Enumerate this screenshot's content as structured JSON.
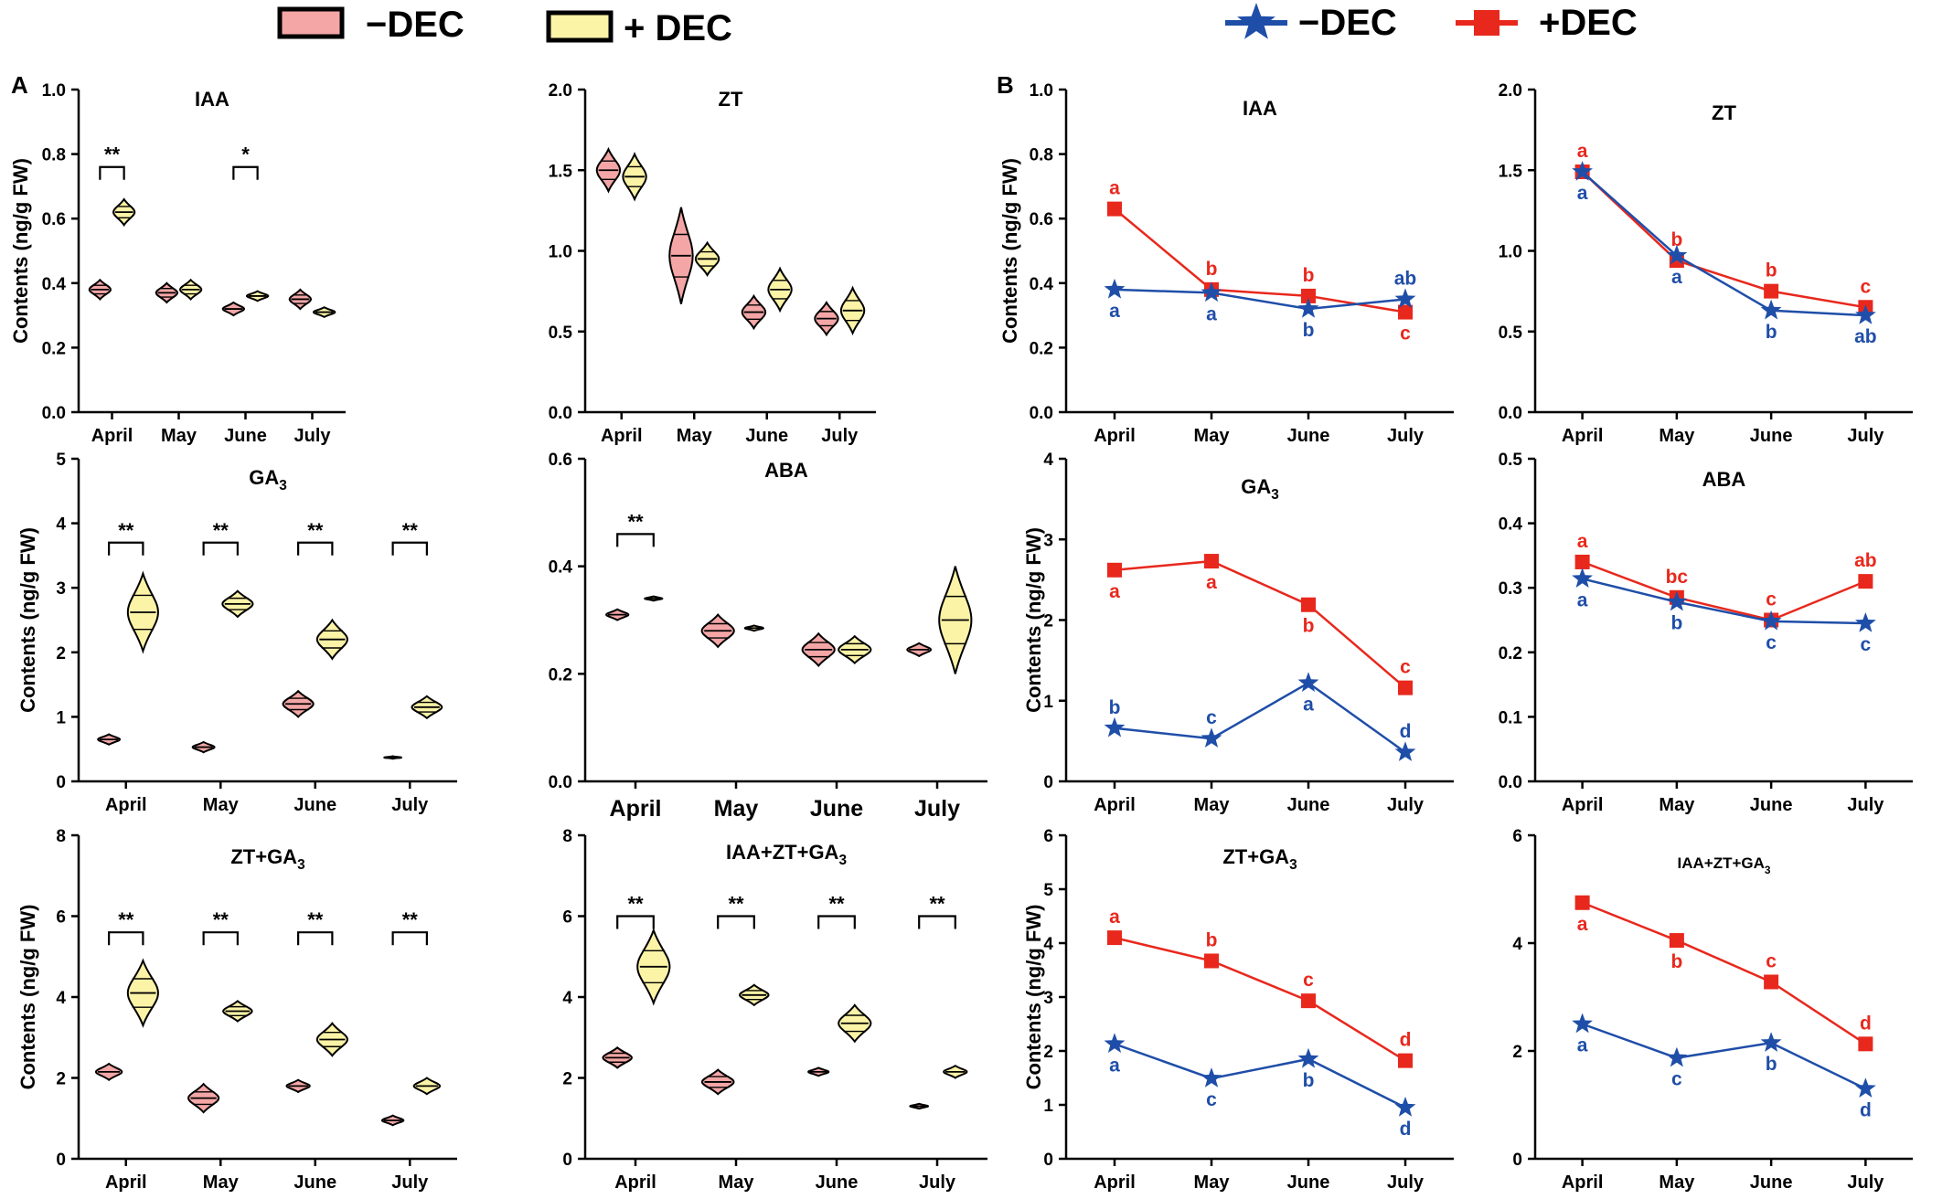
{
  "colors": {
    "minus_fill": "#f4a6a6",
    "plus_fill": "#fbf3a6",
    "outline": "#000000",
    "minus_line": "#1f4ea8",
    "plus_line": "#e8281d"
  },
  "legend_a": {
    "minus_label": "−DEC",
    "plus_label": "+ DEC"
  },
  "legend_b": {
    "minus_label": "−DEC",
    "plus_label": "+DEC"
  },
  "panel_a_letter": "A",
  "panel_b_letter": "B",
  "y_axis_label": "Contents (ng/g FW)",
  "chart_data": [
    {
      "type": "violin",
      "panel": "A",
      "title": "IAA",
      "categories": [
        "April",
        "May",
        "June",
        "July"
      ],
      "ylim": [
        0,
        1.0
      ],
      "yticks": [
        "0.0",
        "0.2",
        "0.4",
        "0.6",
        "0.8",
        "1.0"
      ],
      "ylabel": "Contents (ng/g FW)",
      "series": [
        {
          "name": "−DEC",
          "values": [
            0.38,
            0.37,
            0.32,
            0.35
          ],
          "spread": [
            0.03,
            0.03,
            0.02,
            0.03
          ]
        },
        {
          "name": "+DEC",
          "values": [
            0.62,
            0.38,
            0.36,
            0.31
          ],
          "spread": [
            0.04,
            0.03,
            0.015,
            0.015
          ]
        }
      ],
      "significance": [
        {
          "index": 0,
          "label": "**",
          "y": 0.76
        },
        {
          "index": 2,
          "label": "*",
          "y": 0.76
        }
      ]
    },
    {
      "type": "violin",
      "panel": "A",
      "title": "ZT",
      "categories": [
        "April",
        "May",
        "June",
        "July"
      ],
      "ylim": [
        0,
        2.0
      ],
      "yticks": [
        "0.0",
        "0.5",
        "1.0",
        "1.5",
        "2.0"
      ],
      "ylabel": "",
      "series": [
        {
          "name": "−DEC",
          "values": [
            1.5,
            0.97,
            0.62,
            0.58
          ],
          "spread": [
            0.13,
            0.3,
            0.1,
            0.1
          ]
        },
        {
          "name": "+DEC",
          "values": [
            1.46,
            0.95,
            0.76,
            0.63
          ],
          "spread": [
            0.14,
            0.1,
            0.13,
            0.14
          ]
        }
      ],
      "significance": []
    },
    {
      "type": "violin",
      "panel": "A",
      "title": "GA3",
      "categories": [
        "April",
        "May",
        "June",
        "July"
      ],
      "ylim": [
        0,
        5
      ],
      "yticks": [
        "0",
        "1",
        "2",
        "3",
        "4",
        "5"
      ],
      "ylabel": "Contents (ng/g FW)",
      "series": [
        {
          "name": "−DEC",
          "values": [
            0.65,
            0.53,
            1.2,
            0.37
          ],
          "spread": [
            0.08,
            0.08,
            0.2,
            0.02
          ]
        },
        {
          "name": "+DEC",
          "values": [
            2.62,
            2.75,
            2.2,
            1.15
          ],
          "spread": [
            0.6,
            0.2,
            0.3,
            0.17
          ]
        }
      ],
      "significance": [
        {
          "index": 0,
          "label": "**",
          "y": 3.7
        },
        {
          "index": 1,
          "label": "**",
          "y": 3.7
        },
        {
          "index": 2,
          "label": "**",
          "y": 3.7
        },
        {
          "index": 3,
          "label": "**",
          "y": 3.7
        }
      ]
    },
    {
      "type": "violin",
      "panel": "A",
      "title": "ABA",
      "categories": [
        "April",
        "May",
        "June",
        "July"
      ],
      "ylim": [
        0,
        0.6
      ],
      "yticks": [
        "0.0",
        "0.2",
        "0.4",
        "0.6"
      ],
      "ylabel": "",
      "series": [
        {
          "name": "−DEC",
          "values": [
            0.31,
            0.28,
            0.245,
            0.245
          ],
          "spread": [
            0.01,
            0.03,
            0.03,
            0.012
          ]
        },
        {
          "name": "+DEC",
          "values": [
            0.34,
            0.285,
            0.245,
            0.3
          ],
          "spread": [
            0.004,
            0.005,
            0.025,
            0.1
          ]
        }
      ],
      "significance": [
        {
          "index": 0,
          "label": "**",
          "y": 0.46
        }
      ]
    },
    {
      "type": "violin",
      "panel": "A",
      "title": "ZT+GA3",
      "categories": [
        "April",
        "May",
        "June",
        "July"
      ],
      "ylim": [
        0,
        8
      ],
      "yticks": [
        "0",
        "2",
        "4",
        "6",
        "8"
      ],
      "ylabel": "Contents (ng/g FW)",
      "series": [
        {
          "name": "−DEC",
          "values": [
            2.15,
            1.5,
            1.8,
            0.95
          ],
          "spread": [
            0.2,
            0.35,
            0.15,
            0.12
          ]
        },
        {
          "name": "+DEC",
          "values": [
            4.1,
            3.65,
            2.95,
            1.8
          ],
          "spread": [
            0.8,
            0.25,
            0.4,
            0.2
          ]
        }
      ],
      "significance": [
        {
          "index": 0,
          "label": "**",
          "y": 5.6
        },
        {
          "index": 1,
          "label": "**",
          "y": 5.6
        },
        {
          "index": 2,
          "label": "**",
          "y": 5.6
        },
        {
          "index": 3,
          "label": "**",
          "y": 5.6
        }
      ]
    },
    {
      "type": "violin",
      "panel": "A",
      "title": "IAA+ZT+GA3",
      "categories": [
        "April",
        "May",
        "June",
        "July"
      ],
      "ylim": [
        0,
        8
      ],
      "yticks": [
        "0",
        "2",
        "4",
        "6",
        "8"
      ],
      "ylabel": "",
      "series": [
        {
          "name": "−DEC",
          "values": [
            2.5,
            1.9,
            2.15,
            1.3
          ],
          "spread": [
            0.25,
            0.3,
            0.1,
            0.06
          ]
        },
        {
          "name": "+DEC",
          "values": [
            4.75,
            4.05,
            3.35,
            2.15
          ],
          "spread": [
            0.9,
            0.25,
            0.45,
            0.15
          ]
        }
      ],
      "significance": [
        {
          "index": 0,
          "label": "**",
          "y": 6.0
        },
        {
          "index": 1,
          "label": "**",
          "y": 6.0
        },
        {
          "index": 2,
          "label": "**",
          "y": 6.0
        },
        {
          "index": 3,
          "label": "**",
          "y": 6.0
        }
      ]
    },
    {
      "type": "line",
      "panel": "B",
      "title": "IAA",
      "categories": [
        "April",
        "May",
        "June",
        "July"
      ],
      "ylim": [
        0,
        1.0
      ],
      "yticks": [
        "0.0",
        "0.2",
        "0.4",
        "0.6",
        "0.8",
        "1.0"
      ],
      "ylabel": "Contents (ng/g FW)",
      "series": [
        {
          "name": "−DEC",
          "values": [
            0.38,
            0.37,
            0.32,
            0.35
          ],
          "letters": [
            "a",
            "a",
            "b",
            "ab"
          ],
          "letter_pos": [
            "below",
            "below",
            "below",
            "above"
          ]
        },
        {
          "name": "+DEC",
          "values": [
            0.63,
            0.38,
            0.36,
            0.31
          ],
          "letters": [
            "a",
            "b",
            "b",
            "c"
          ],
          "letter_pos": [
            "above",
            "above",
            "above",
            "below"
          ]
        }
      ]
    },
    {
      "type": "line",
      "panel": "B",
      "title": "ZT",
      "categories": [
        "April",
        "May",
        "June",
        "July"
      ],
      "ylim": [
        0,
        2.0
      ],
      "yticks": [
        "0.0",
        "0.5",
        "1.0",
        "1.5",
        "2.0"
      ],
      "ylabel": "",
      "series": [
        {
          "name": "−DEC",
          "values": [
            1.49,
            0.97,
            0.63,
            0.6
          ],
          "letters": [
            "a",
            "a",
            "b",
            "ab"
          ],
          "letter_pos": [
            "below",
            "below",
            "below",
            "below"
          ]
        },
        {
          "name": "+DEC",
          "values": [
            1.49,
            0.94,
            0.75,
            0.65
          ],
          "letters": [
            "a",
            "b",
            "b",
            "c"
          ],
          "letter_pos": [
            "above",
            "above",
            "above",
            "above"
          ]
        }
      ]
    },
    {
      "type": "line",
      "panel": "B",
      "title": "GA3",
      "categories": [
        "April",
        "May",
        "June",
        "July"
      ],
      "ylim": [
        0,
        4
      ],
      "yticks": [
        "0",
        "1",
        "2",
        "3",
        "4"
      ],
      "ylabel": "Contents (ng/g FW)",
      "series": [
        {
          "name": "−DEC",
          "values": [
            0.66,
            0.53,
            1.22,
            0.36
          ],
          "letters": [
            "b",
            "c",
            "a",
            "d"
          ],
          "letter_pos": [
            "above",
            "above",
            "below",
            "above"
          ]
        },
        {
          "name": "+DEC",
          "values": [
            2.62,
            2.73,
            2.19,
            1.16
          ],
          "letters": [
            "a",
            "a",
            "b",
            "c"
          ],
          "letter_pos": [
            "below",
            "below",
            "below",
            "above"
          ]
        }
      ]
    },
    {
      "type": "line",
      "panel": "B",
      "title": "ABA",
      "categories": [
        "April",
        "May",
        "June",
        "July"
      ],
      "ylim": [
        0,
        0.5
      ],
      "yticks": [
        "0.0",
        "0.1",
        "0.2",
        "0.3",
        "0.4",
        "0.5"
      ],
      "ylabel": "",
      "series": [
        {
          "name": "−DEC",
          "values": [
            0.314,
            0.278,
            0.248,
            0.245
          ],
          "letters": [
            "a",
            "b",
            "c",
            "c"
          ],
          "letter_pos": [
            "below",
            "below",
            "below",
            "below"
          ]
        },
        {
          "name": "+DEC",
          "values": [
            0.34,
            0.285,
            0.25,
            0.31
          ],
          "letters": [
            "a",
            "bc",
            "c",
            "ab"
          ],
          "letter_pos": [
            "above",
            "above",
            "above",
            "above"
          ]
        }
      ]
    },
    {
      "type": "line",
      "panel": "B",
      "title": "ZT+GA3",
      "categories": [
        "April",
        "May",
        "June",
        "July"
      ],
      "ylim": [
        0,
        6
      ],
      "yticks": [
        "0",
        "1",
        "2",
        "3",
        "4",
        "5",
        "6"
      ],
      "ylabel": "Contents (ng/g FW)",
      "series": [
        {
          "name": "−DEC",
          "values": [
            2.13,
            1.49,
            1.85,
            0.95
          ],
          "letters": [
            "a",
            "c",
            "b",
            "d"
          ],
          "letter_pos": [
            "below",
            "below",
            "below",
            "below"
          ]
        },
        {
          "name": "+DEC",
          "values": [
            4.1,
            3.67,
            2.93,
            1.82
          ],
          "letters": [
            "a",
            "b",
            "c",
            "d"
          ],
          "letter_pos": [
            "above",
            "above",
            "above",
            "above"
          ]
        }
      ]
    },
    {
      "type": "line",
      "panel": "B",
      "title": "IAA+ZT+GA3",
      "categories": [
        "April",
        "May",
        "June",
        "July"
      ],
      "ylim": [
        0,
        6
      ],
      "yticks": [
        "0",
        "2",
        "4",
        "6"
      ],
      "ylabel": "",
      "series": [
        {
          "name": "−DEC",
          "values": [
            2.5,
            1.87,
            2.15,
            1.3
          ],
          "letters": [
            "a",
            "c",
            "b",
            "d"
          ],
          "letter_pos": [
            "below",
            "below",
            "below",
            "below"
          ]
        },
        {
          "name": "+DEC",
          "values": [
            4.75,
            4.05,
            3.28,
            2.13
          ],
          "letters": [
            "a",
            "b",
            "c",
            "d"
          ],
          "letter_pos": [
            "below",
            "below",
            "above",
            "above"
          ]
        }
      ]
    }
  ]
}
